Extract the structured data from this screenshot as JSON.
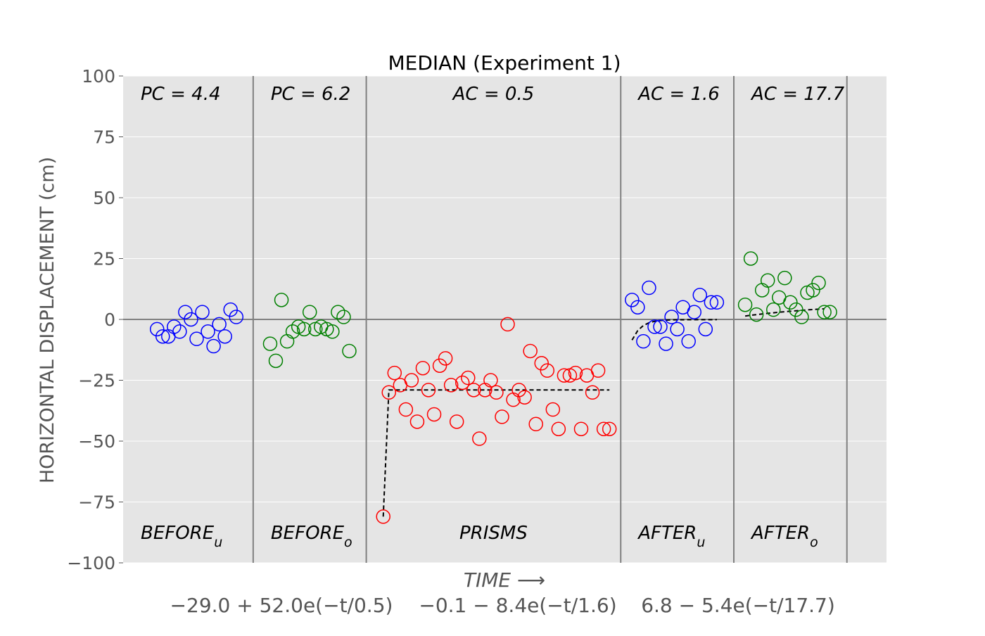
{
  "chart_data": {
    "type": "scatter",
    "title": "MEDIAN (Experiment 1)",
    "ylabel": "HORIZONTAL DISPLACEMENT (cm)",
    "xlabel": "TIME ⟶",
    "ylim": [
      -100,
      100
    ],
    "yticks": [
      100,
      75,
      50,
      25,
      0,
      -25,
      -50,
      -75,
      -100
    ],
    "ytick_labels": [
      "100",
      "75",
      "50",
      "25",
      "0",
      "−25",
      "−50",
      "−75",
      "−100"
    ],
    "xlim": [
      0,
      135
    ],
    "grid": true,
    "segments": [
      {
        "top_label": "PC = 4.4",
        "bottom_label": "BEFORE",
        "bottom_sub": "u",
        "start": 0,
        "end": 23
      },
      {
        "top_label": "PC = 6.2",
        "bottom_label": "BEFORE",
        "bottom_sub": "o",
        "start": 23,
        "end": 43
      },
      {
        "top_label": "AC = 0.5",
        "bottom_label": "PRISMS",
        "bottom_sub": "",
        "start": 43,
        "end": 88
      },
      {
        "top_label": "AC = 1.6",
        "bottom_label": "AFTER",
        "bottom_sub": "u",
        "start": 88,
        "end": 108
      },
      {
        "top_label": "AC = 17.7",
        "bottom_label": "AFTER",
        "bottom_sub": "o",
        "start": 108,
        "end": 128
      }
    ],
    "series": [
      {
        "segment": "BEFORE_u",
        "color": "#0000ff",
        "x": [
          6,
          7,
          8,
          9,
          10,
          11,
          12,
          13,
          14,
          15,
          16,
          17,
          18,
          19,
          20
        ],
        "y": [
          -4,
          -7,
          -7,
          -3,
          -5,
          3,
          0,
          -8,
          3,
          -5,
          -11,
          -2,
          -7,
          4,
          1
        ]
      },
      {
        "segment": "BEFORE_o",
        "color": "#008000",
        "x": [
          26,
          27,
          28,
          29,
          30,
          31,
          32,
          33,
          34,
          35,
          36,
          37,
          38,
          39,
          40
        ],
        "y": [
          -10,
          -17,
          8,
          -9,
          -5,
          -3,
          -4,
          3,
          -4,
          -3,
          -4,
          -5,
          3,
          1,
          -13
        ]
      },
      {
        "segment": "PRISMS",
        "color": "#ff0000",
        "x": [
          46,
          47,
          48,
          49,
          50,
          51,
          52,
          53,
          54,
          55,
          56,
          57,
          58,
          59,
          60,
          61,
          62,
          63,
          64,
          65,
          66,
          67,
          68,
          69,
          70,
          71,
          72,
          73,
          74,
          75,
          76,
          77,
          78,
          79,
          80,
          81,
          82,
          83,
          84,
          85,
          86
        ],
        "y": [
          -81,
          -30,
          -22,
          -27,
          -37,
          -25,
          -42,
          -20,
          -29,
          -39,
          -19,
          -16,
          -27,
          -42,
          -26,
          -24,
          -29,
          -49,
          -29,
          -25,
          -30,
          -40,
          -2,
          -33,
          -29,
          -32,
          -13,
          -43,
          -18,
          -21,
          -37,
          -45,
          -23,
          -23,
          -22,
          -45,
          -23,
          -30,
          -21,
          -45,
          -45
        ]
      },
      {
        "segment": "AFTER_u",
        "color": "#0000ff",
        "x": [
          90,
          91,
          92,
          93,
          94,
          95,
          96,
          97,
          98,
          99,
          100,
          101,
          102,
          103,
          104,
          105
        ],
        "y": [
          8,
          5,
          -9,
          13,
          -3,
          -3,
          -10,
          1,
          -4,
          5,
          -9,
          3,
          10,
          -4,
          7,
          7
        ]
      },
      {
        "segment": "AFTER_o",
        "color": "#008000",
        "x": [
          110,
          111,
          112,
          113,
          114,
          115,
          116,
          117,
          118,
          119,
          120,
          121,
          122,
          123,
          124,
          125
        ],
        "y": [
          6,
          25,
          2,
          12,
          16,
          4,
          9,
          17,
          7,
          4,
          1,
          11,
          12,
          15,
          3,
          3
        ]
      }
    ],
    "fits": [
      {
        "segment": "PRISMS",
        "equation": "−29.0 + 52.0e(−t/0.5)",
        "asymptote": -29.0,
        "amplitude": 52.0,
        "tau": 0.5,
        "x_start": 46,
        "x_end": 86
      },
      {
        "segment": "AFTER_u",
        "equation": "−0.1 − 8.4e(−t/1.6)",
        "asymptote": -0.1,
        "amplitude": 8.4,
        "tau": 1.6,
        "x_start": 90,
        "x_end": 105
      },
      {
        "segment": "AFTER_o",
        "equation": "6.8 − 5.4e(−t/17.7)",
        "asymptote": 6.8,
        "amplitude": 5.4,
        "tau": 17.7,
        "x_start": 110,
        "x_end": 124
      }
    ]
  }
}
